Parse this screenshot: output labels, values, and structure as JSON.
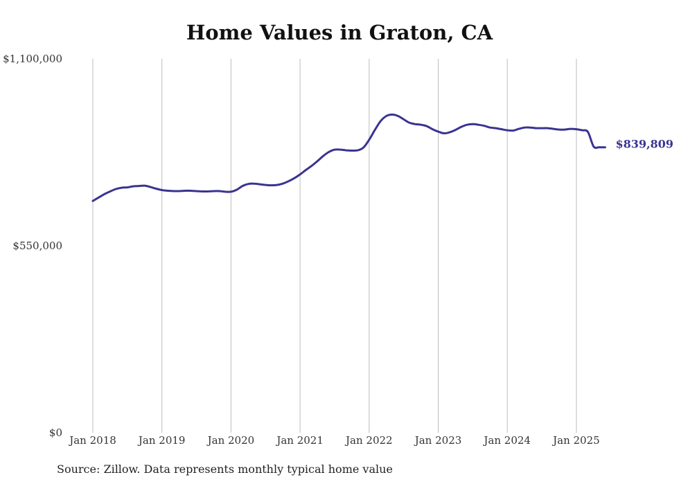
{
  "chart_data": {
    "type": "line",
    "title": "Home Values in Graton, CA",
    "xlabel": "",
    "ylabel": "",
    "ylim": [
      0,
      1100000
    ],
    "xlim": [
      "2018-01",
      "2025-06"
    ],
    "y_ticks": [
      "$0",
      "$550,000",
      "$1,100,000"
    ],
    "y_tick_values": [
      0,
      550000,
      1100000
    ],
    "x_ticks": [
      "Jan 2018",
      "Jan 2019",
      "Jan 2020",
      "Jan 2021",
      "Jan 2022",
      "Jan 2023",
      "Jan 2024",
      "Jan 2025"
    ],
    "x_tick_values": [
      "2018-01",
      "2019-01",
      "2020-01",
      "2021-01",
      "2022-01",
      "2023-01",
      "2024-01",
      "2025-01"
    ],
    "grid": {
      "vertical": true,
      "horizontal": false
    },
    "line_color": "#3a3391",
    "end_label": "$839,809",
    "series": [
      {
        "x": [
          "2018-01",
          "2018-02",
          "2018-03",
          "2018-04",
          "2018-05",
          "2018-06",
          "2018-07",
          "2018-08",
          "2018-09",
          "2018-10",
          "2018-11",
          "2018-12",
          "2019-01",
          "2019-02",
          "2019-03",
          "2019-04",
          "2019-05",
          "2019-06",
          "2019-07",
          "2019-08",
          "2019-09",
          "2019-10",
          "2019-11",
          "2019-12",
          "2020-01",
          "2020-02",
          "2020-03",
          "2020-04",
          "2020-05",
          "2020-06",
          "2020-07",
          "2020-08",
          "2020-09",
          "2020-10",
          "2020-11",
          "2020-12",
          "2021-01",
          "2021-02",
          "2021-03",
          "2021-04",
          "2021-05",
          "2021-06",
          "2021-07",
          "2021-08",
          "2021-09",
          "2021-10",
          "2021-11",
          "2021-12",
          "2022-01",
          "2022-02",
          "2022-03",
          "2022-04",
          "2022-05",
          "2022-06",
          "2022-07",
          "2022-08",
          "2022-09",
          "2022-10",
          "2022-11",
          "2022-12",
          "2023-01",
          "2023-02",
          "2023-03",
          "2023-04",
          "2023-05",
          "2023-06",
          "2023-07",
          "2023-08",
          "2023-09",
          "2023-10",
          "2023-11",
          "2023-12",
          "2024-01",
          "2024-02",
          "2024-03",
          "2024-04",
          "2024-05",
          "2024-06",
          "2024-07",
          "2024-08",
          "2024-09",
          "2024-10",
          "2024-11",
          "2024-12",
          "2025-01",
          "2025-02",
          "2025-03",
          "2025-04",
          "2025-05",
          "2025-06"
        ],
        "values": [
          682000,
          692000,
          702000,
          710000,
          717000,
          721000,
          722000,
          725000,
          726000,
          727000,
          723000,
          718000,
          714000,
          712000,
          711000,
          711000,
          712000,
          712000,
          711000,
          710000,
          710000,
          711000,
          711000,
          709000,
          709000,
          715000,
          726000,
          732000,
          733000,
          731000,
          729000,
          728000,
          729000,
          733000,
          740000,
          749000,
          760000,
          773000,
          785000,
          799000,
          814000,
          826000,
          833000,
          833000,
          831000,
          830000,
          831000,
          839000,
          862000,
          891000,
          917000,
          932000,
          936000,
          932000,
          922000,
          912000,
          908000,
          906000,
          902000,
          893000,
          886000,
          881000,
          884000,
          891000,
          900000,
          906000,
          908000,
          906000,
          903000,
          898000,
          896000,
          893000,
          890000,
          889000,
          894000,
          898000,
          898000,
          896000,
          896000,
          896000,
          894000,
          892000,
          892000,
          894000,
          893000,
          890000,
          885000,
          842000,
          840000,
          839809
        ]
      }
    ]
  },
  "source_text": "Source: Zillow. Data represents monthly typical home value"
}
